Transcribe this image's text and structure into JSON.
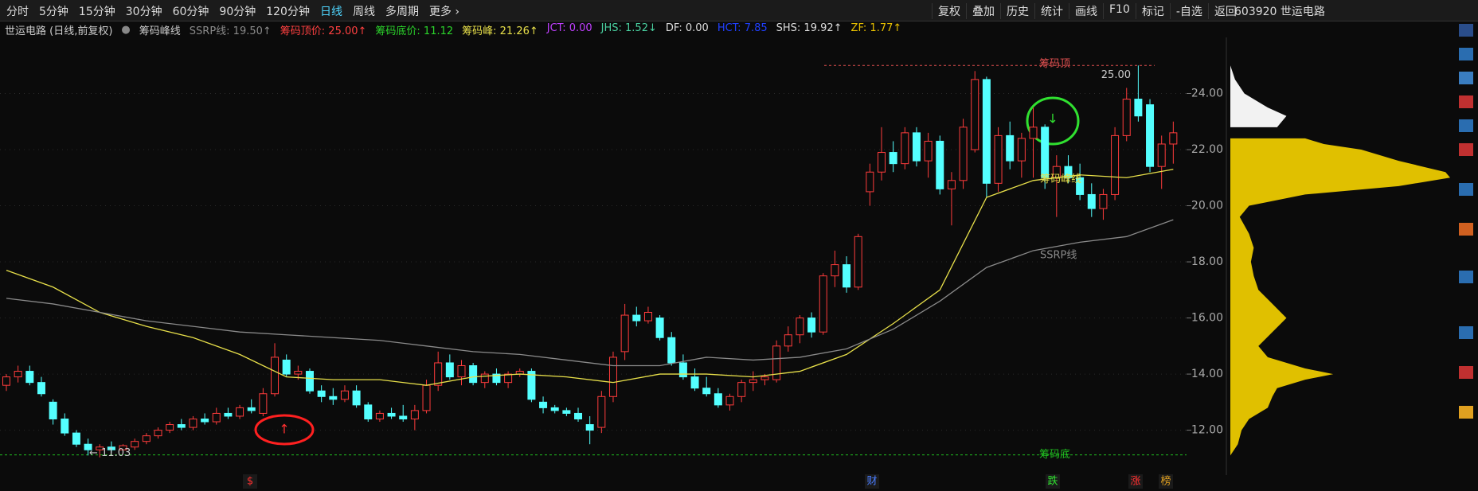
{
  "toolbar": {
    "periods": [
      "分时",
      "5分钟",
      "15分钟",
      "30分钟",
      "60分钟",
      "90分钟",
      "120分钟",
      "日线",
      "周线",
      "多周期",
      "更多 ›"
    ],
    "tools": [
      "复权",
      "叠加",
      "历史",
      "统计",
      "画线",
      "F10",
      "标记",
      "-自选",
      "返回"
    ],
    "stock": "603920 世运电路"
  },
  "info_bar": {
    "name": "世运电路 (日线,前复权)",
    "indicator": "筹码峰线",
    "items": [
      "SSRP线: 19.50↑",
      "筹码顶价: 25.00↑",
      "筹码底价: 11.12",
      "筹码峰: 21.26↑",
      "JCT: 0.00",
      "JHS: 1.52↓",
      "DF: 0.00",
      "HCT: 7.85",
      "SHS: 19.92↑",
      "ZF: 1.77↑"
    ]
  },
  "chart_data": {
    "type": "candlestick",
    "ohlc": [
      [
        13.6,
        14.0,
        13.4,
        13.9
      ],
      [
        13.9,
        14.3,
        13.7,
        14.1
      ],
      [
        14.1,
        14.3,
        13.6,
        13.7
      ],
      [
        13.7,
        13.9,
        13.2,
        13.3
      ],
      [
        13.0,
        13.1,
        12.2,
        12.4
      ],
      [
        12.4,
        12.6,
        11.8,
        11.9
      ],
      [
        11.9,
        12.0,
        11.4,
        11.5
      ],
      [
        11.5,
        11.7,
        11.1,
        11.3
      ],
      [
        11.3,
        11.5,
        11.03,
        11.4
      ],
      [
        11.4,
        11.6,
        11.2,
        11.3
      ],
      [
        11.3,
        11.5,
        11.2,
        11.45
      ],
      [
        11.4,
        11.7,
        11.3,
        11.6
      ],
      [
        11.6,
        11.9,
        11.5,
        11.8
      ],
      [
        11.8,
        12.1,
        11.7,
        12.0
      ],
      [
        12.0,
        12.3,
        11.9,
        12.2
      ],
      [
        12.2,
        12.4,
        12.0,
        12.1
      ],
      [
        12.1,
        12.5,
        12.0,
        12.4
      ],
      [
        12.4,
        12.6,
        12.2,
        12.3
      ],
      [
        12.3,
        12.8,
        12.2,
        12.6
      ],
      [
        12.6,
        12.8,
        12.4,
        12.5
      ],
      [
        12.5,
        12.9,
        12.4,
        12.8
      ],
      [
        12.8,
        13.1,
        12.6,
        12.7
      ],
      [
        12.6,
        13.5,
        12.5,
        13.3
      ],
      [
        13.3,
        15.1,
        13.2,
        14.6
      ],
      [
        14.5,
        14.7,
        13.9,
        14.0
      ],
      [
        14.0,
        14.3,
        13.8,
        14.1
      ],
      [
        14.1,
        14.2,
        13.3,
        13.4
      ],
      [
        13.4,
        13.6,
        13.0,
        13.2
      ],
      [
        13.2,
        13.5,
        12.9,
        13.1
      ],
      [
        13.1,
        13.6,
        13.0,
        13.4
      ],
      [
        13.4,
        13.6,
        12.8,
        12.9
      ],
      [
        12.9,
        13.0,
        12.3,
        12.4
      ],
      [
        12.4,
        12.7,
        12.3,
        12.6
      ],
      [
        12.6,
        12.8,
        12.4,
        12.5
      ],
      [
        12.5,
        12.9,
        12.3,
        12.4
      ],
      [
        12.4,
        12.9,
        12.0,
        12.7
      ],
      [
        12.7,
        13.8,
        12.6,
        13.6
      ],
      [
        13.6,
        14.8,
        13.4,
        14.4
      ],
      [
        14.4,
        14.7,
        13.8,
        13.9
      ],
      [
        13.9,
        14.5,
        13.6,
        14.3
      ],
      [
        14.3,
        14.4,
        13.6,
        13.7
      ],
      [
        13.7,
        14.1,
        13.5,
        14.0
      ],
      [
        14.0,
        14.2,
        13.6,
        13.7
      ],
      [
        13.7,
        14.1,
        13.5,
        14.0
      ],
      [
        14.0,
        14.2,
        13.9,
        14.1
      ],
      [
        14.1,
        14.2,
        13.0,
        13.1
      ],
      [
        13.0,
        13.2,
        12.6,
        12.8
      ],
      [
        12.8,
        12.9,
        12.6,
        12.7
      ],
      [
        12.7,
        12.8,
        12.5,
        12.6
      ],
      [
        12.6,
        12.8,
        12.3,
        12.4
      ],
      [
        12.2,
        12.5,
        11.5,
        12.0
      ],
      [
        12.1,
        13.4,
        11.9,
        13.2
      ],
      [
        13.2,
        14.8,
        13.0,
        14.6
      ],
      [
        14.8,
        16.5,
        14.5,
        16.1
      ],
      [
        16.1,
        16.4,
        15.7,
        15.9
      ],
      [
        15.9,
        16.4,
        15.8,
        16.2
      ],
      [
        16.0,
        16.1,
        15.2,
        15.3
      ],
      [
        15.3,
        15.5,
        14.3,
        14.4
      ],
      [
        14.4,
        14.7,
        13.8,
        13.9
      ],
      [
        13.9,
        14.2,
        13.4,
        13.5
      ],
      [
        13.5,
        13.9,
        13.2,
        13.3
      ],
      [
        13.3,
        13.5,
        12.8,
        12.9
      ],
      [
        12.9,
        13.3,
        12.7,
        13.2
      ],
      [
        13.2,
        13.8,
        13.0,
        13.7
      ],
      [
        13.7,
        14.1,
        13.4,
        13.8
      ],
      [
        13.8,
        14.0,
        13.6,
        13.9
      ],
      [
        13.8,
        15.2,
        13.7,
        15.0
      ],
      [
        15.0,
        15.7,
        14.8,
        15.4
      ],
      [
        15.4,
        16.1,
        15.1,
        16.0
      ],
      [
        16.0,
        16.2,
        15.3,
        15.5
      ],
      [
        15.5,
        17.6,
        15.4,
        17.5
      ],
      [
        17.5,
        18.4,
        17.1,
        17.9
      ],
      [
        17.9,
        18.2,
        16.9,
        17.1
      ],
      [
        17.1,
        19.0,
        17.0,
        18.9
      ],
      [
        20.5,
        21.5,
        20.0,
        21.2
      ],
      [
        21.2,
        22.8,
        20.9,
        21.9
      ],
      [
        21.9,
        22.3,
        21.2,
        21.5
      ],
      [
        21.5,
        22.8,
        21.3,
        22.6
      ],
      [
        22.6,
        22.8,
        21.4,
        21.6
      ],
      [
        21.6,
        22.6,
        21.0,
        22.3
      ],
      [
        22.3,
        22.5,
        20.4,
        20.6
      ],
      [
        20.6,
        21.2,
        19.3,
        20.9
      ],
      [
        20.9,
        23.1,
        20.6,
        22.8
      ],
      [
        22.0,
        24.8,
        21.9,
        24.5
      ],
      [
        24.5,
        24.6,
        20.3,
        20.8
      ],
      [
        20.8,
        22.8,
        20.5,
        22.5
      ],
      [
        22.5,
        23.0,
        21.3,
        21.6
      ],
      [
        21.6,
        22.6,
        21.0,
        22.4
      ],
      [
        22.4,
        23.5,
        21.0,
        22.8
      ],
      [
        22.8,
        22.9,
        20.6,
        21.0
      ],
      [
        21.0,
        21.8,
        19.6,
        21.4
      ],
      [
        21.4,
        21.8,
        20.8,
        21.0
      ],
      [
        21.0,
        21.5,
        20.2,
        20.4
      ],
      [
        20.4,
        20.8,
        19.6,
        19.9
      ],
      [
        19.9,
        20.6,
        19.5,
        20.4
      ],
      [
        20.4,
        22.8,
        20.2,
        22.5
      ],
      [
        22.5,
        24.2,
        22.3,
        23.8
      ],
      [
        23.8,
        25.0,
        23.0,
        23.2
      ],
      [
        23.6,
        23.8,
        21.2,
        21.4
      ],
      [
        21.4,
        22.5,
        20.6,
        22.2
      ],
      [
        22.2,
        23.0,
        21.5,
        22.6
      ]
    ],
    "lines": [
      {
        "name": "筹码峰线",
        "color": "#e8e04a",
        "values": [
          17.7,
          17.1,
          16.2,
          15.7,
          15.3,
          14.7,
          13.9,
          13.8,
          13.8,
          13.6,
          13.9,
          14.0,
          13.9,
          13.7,
          14.0,
          14.0,
          13.9,
          14.1,
          14.7,
          15.8,
          17.0,
          20.3,
          20.9,
          21.1,
          21.0,
          21.3
        ]
      },
      {
        "name": "SSRP线",
        "color": "#8a8a8a",
        "values": [
          16.7,
          16.5,
          16.2,
          15.9,
          15.7,
          15.5,
          15.4,
          15.3,
          15.2,
          15.0,
          14.8,
          14.7,
          14.5,
          14.3,
          14.3,
          14.6,
          14.5,
          14.6,
          14.9,
          15.6,
          16.6,
          17.8,
          18.4,
          18.7,
          18.9,
          19.5
        ]
      }
    ],
    "ylim": [
      10.4,
      26.0
    ],
    "yticks": [
      {
        "value": 12,
        "label": "12.00"
      },
      {
        "value": 14,
        "label": "14.00"
      },
      {
        "value": 16,
        "label": "16.00"
      },
      {
        "value": 18,
        "label": "18.00"
      },
      {
        "value": 20,
        "label": "20.00"
      },
      {
        "value": 22,
        "label": "22.00"
      },
      {
        "value": 24,
        "label": "24.00"
      }
    ],
    "grid": true,
    "chip_top": 25.0,
    "chip_top_label": "筹码顶",
    "chip_bottom": 11.12,
    "chip_bottom_label": "筹码底",
    "high_label": "25.00",
    "low_label": "← 11.03",
    "chip": {
      "prices": [
        25.0,
        24.5,
        24.0,
        23.5,
        23.2,
        22.8,
        22.4,
        22.2,
        22.0,
        21.6,
        21.2,
        21.0,
        20.7,
        20.4,
        20.0,
        19.6,
        19.0,
        18.5,
        18.0,
        17.5,
        17.0,
        16.5,
        16.0,
        15.5,
        15.0,
        14.6,
        14.2,
        14.0,
        13.8,
        13.5,
        13.2,
        12.8,
        12.4,
        12.0,
        11.5,
        11.1
      ],
      "widths": [
        0,
        5,
        15,
        40,
        60,
        50,
        80,
        100,
        140,
        180,
        230,
        235,
        180,
        80,
        20,
        10,
        20,
        25,
        22,
        25,
        30,
        45,
        60,
        45,
        30,
        40,
        80,
        110,
        80,
        50,
        45,
        40,
        20,
        12,
        8,
        0
      ]
    },
    "events": [
      "$",
      "财",
      "跌",
      "涨",
      "榜"
    ]
  }
}
